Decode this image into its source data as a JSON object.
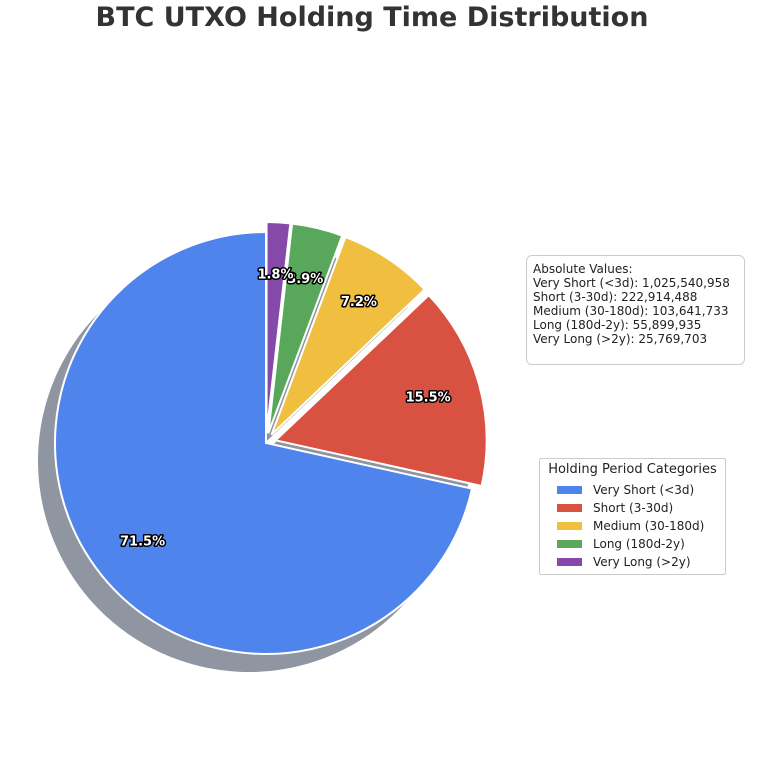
{
  "chart_data": {
    "type": "pie",
    "title": "BTC UTXO Holding Time Distribution",
    "categories": [
      "Very Short (<3d)",
      "Short (3-30d)",
      "Medium (30-180d)",
      "Long (180d-2y)",
      "Very Long (>2y)"
    ],
    "values": [
      1025540958,
      222914488,
      103641733,
      55899935,
      25769703
    ],
    "percent_labels": [
      "71.5%",
      "15.5%",
      "7.2%",
      "3.9%",
      "1.8%"
    ],
    "colors": [
      "#5084ED",
      "#D95141",
      "#F1BF40",
      "#58A75A",
      "#8549AA"
    ],
    "exploded": [
      false,
      true,
      true,
      true,
      true
    ],
    "start_angle_deg": 90,
    "direction": "counterclockwise",
    "shadow": true,
    "legend": {
      "title": "Holding Period Categories",
      "placement": "right",
      "items": [
        "Very Short (<3d)",
        "Short (3-30d)",
        "Medium (30-180d)",
        "Long (180d-2y)",
        "Very Long (>2y)"
      ]
    },
    "annotation": {
      "lines": [
        "Absolute Values:",
        "Very Short (<3d): 1,025,540,958",
        "Short (3-30d): 222,914,488",
        "Medium (30-180d): 103,641,733",
        "Long (180d-2y): 55,899,935",
        "Very Long (>2y): 25,769,703"
      ]
    }
  }
}
